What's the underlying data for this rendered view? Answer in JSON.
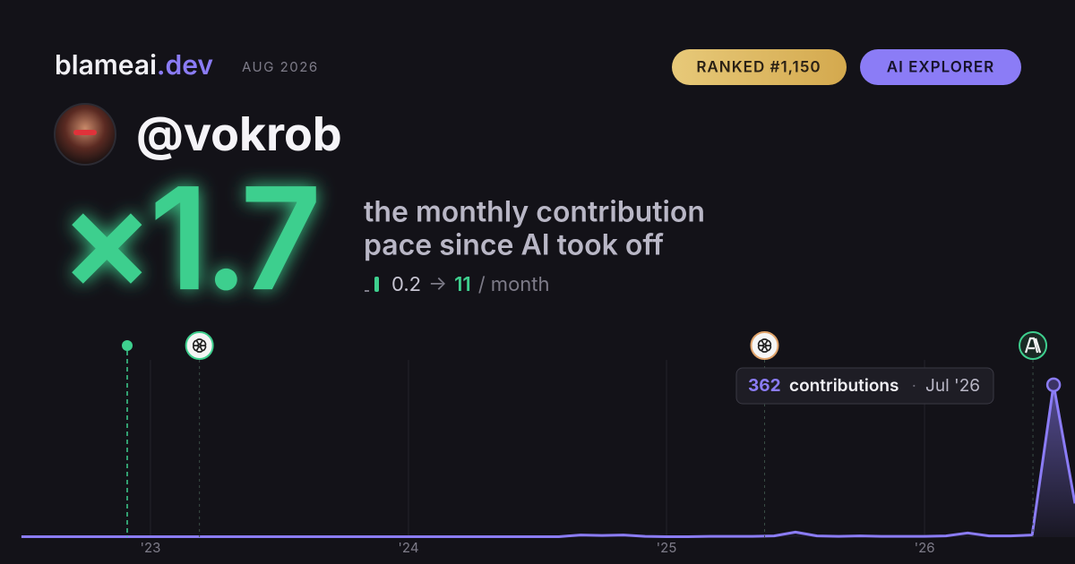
{
  "header": {
    "brand": "blameai",
    "brand_tld": ".dev",
    "date": "AUG 2026",
    "rank_badge": "RANKED #1,150",
    "tier_badge": "AI EXPLORER"
  },
  "profile": {
    "handle": "@vokrob"
  },
  "stat": {
    "multiplier": "×1.7",
    "description_line1": "the monthly contribution",
    "description_line2": "pace since AI took off",
    "pace_before": "0.2",
    "arrow": "→",
    "pace_after": "11",
    "pace_unit": "/ month"
  },
  "tooltip": {
    "unit": "contributions",
    "separator": "·",
    "date": "Jul '26",
    "point_index": 48
  },
  "chart_data": {
    "type": "area",
    "x": [
      2022.5,
      2022.583,
      2022.667,
      2022.75,
      2022.833,
      2022.917,
      2023.0,
      2023.083,
      2023.167,
      2023.25,
      2023.333,
      2023.417,
      2023.5,
      2023.583,
      2023.667,
      2023.75,
      2023.833,
      2023.917,
      2024.0,
      2024.083,
      2024.167,
      2024.25,
      2024.333,
      2024.417,
      2024.5,
      2024.583,
      2024.667,
      2024.75,
      2024.833,
      2024.917,
      2025.0,
      2025.083,
      2025.167,
      2025.25,
      2025.333,
      2025.417,
      2025.5,
      2025.583,
      2025.667,
      2025.75,
      2025.833,
      2025.917,
      2026.0,
      2026.083,
      2026.167,
      2026.25,
      2026.333,
      2026.417,
      2026.5,
      2026.583
    ],
    "series": [
      {
        "name": "contributions",
        "color": "#8b7cf6",
        "values": [
          1,
          1,
          1,
          1,
          1,
          1,
          1,
          1,
          1,
          1,
          1,
          1,
          1,
          1,
          1,
          1,
          1,
          1,
          1,
          1,
          1,
          1,
          1,
          1,
          1,
          1,
          5,
          4,
          5,
          2,
          1,
          1,
          2,
          2,
          2,
          3,
          12,
          3,
          2,
          3,
          2,
          2,
          2,
          3,
          10,
          3,
          3,
          5,
          362,
          80
        ]
      }
    ],
    "xlim": [
      2022.417,
      2026.583
    ],
    "ylim": [
      0,
      400
    ],
    "xticks": [
      {
        "value": 2023,
        "label": "'23"
      },
      {
        "value": 2024,
        "label": "'24"
      },
      {
        "value": 2025,
        "label": "'25"
      },
      {
        "value": 2026,
        "label": "'26"
      }
    ],
    "grid": true,
    "events": [
      2022.91,
      2023.19,
      2025.38,
      2026.42
    ],
    "event_color": "#3ecf8e"
  }
}
